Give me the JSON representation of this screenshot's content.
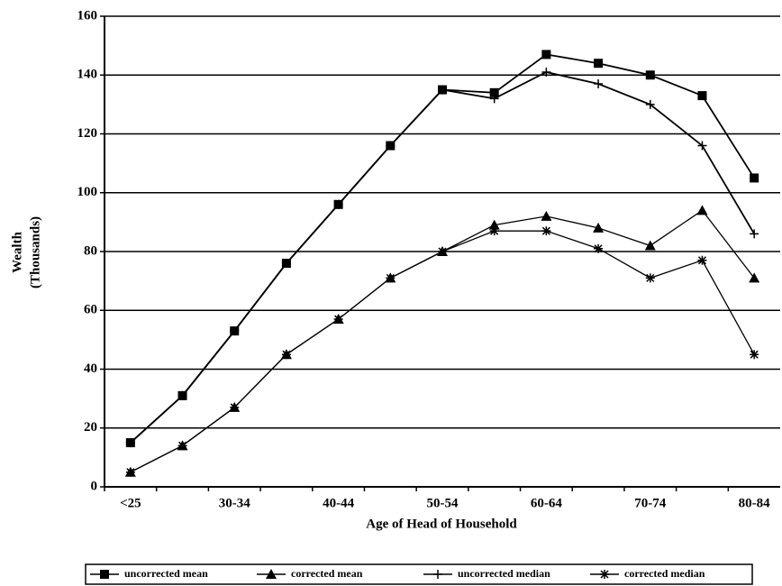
{
  "chart_data": {
    "type": "line",
    "xlabel": "Age of Head of Household",
    "ylabel": [
      "Wealth",
      "(Thousands)"
    ],
    "categories": [
      "<25",
      null,
      "30-34",
      null,
      "40-44",
      null,
      "50-54",
      null,
      "60-64",
      null,
      "70-74",
      null,
      "80-84"
    ],
    "ylim": [
      0,
      160
    ],
    "yticks": [
      0,
      20,
      40,
      60,
      80,
      100,
      120,
      140,
      160
    ],
    "grid": true,
    "series": [
      {
        "name": "uncorrected mean",
        "color": "#000",
        "marker": "square",
        "values": [
          15,
          31,
          53,
          76,
          96,
          116,
          135,
          134,
          147,
          144,
          140,
          133,
          105
        ]
      },
      {
        "name": "corrected mean",
        "color": "#000",
        "marker": "triangle",
        "values": [
          5,
          14,
          27,
          45,
          57,
          71,
          80,
          89,
          92,
          88,
          82,
          94,
          71
        ]
      },
      {
        "name": "uncorrected median",
        "color": "#000",
        "marker": "plus",
        "values": [
          15,
          31,
          53,
          76,
          96,
          116,
          135,
          132,
          141,
          137,
          130,
          116,
          86
        ]
      },
      {
        "name": "corrected median",
        "color": "#000",
        "marker": "asterisk",
        "values": [
          5,
          14,
          27,
          45,
          57,
          71,
          80,
          87,
          87,
          81,
          71,
          77,
          45
        ]
      }
    ]
  }
}
